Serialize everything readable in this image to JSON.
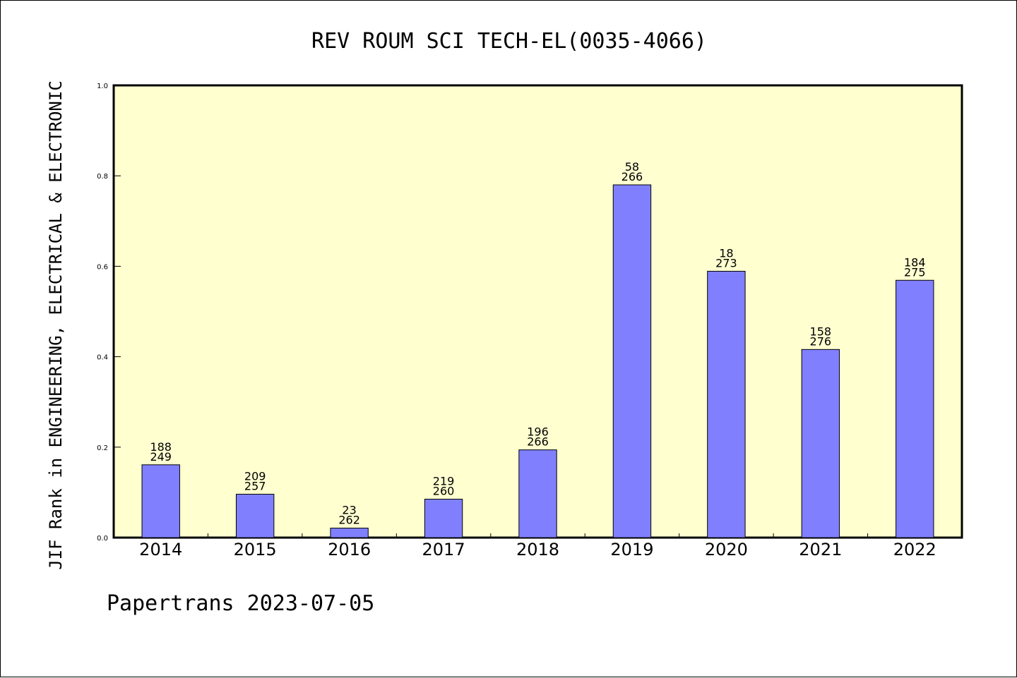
{
  "chart_data": {
    "type": "bar",
    "title": "REV ROUM SCI TECH-EL(0035-4066)",
    "ylabel": "JIF Rank in ENGINEERING, ELECTRICAL & ELECTRONIC",
    "xlabel": "",
    "categories": [
      "2014",
      "2015",
      "2016",
      "2017",
      "2018",
      "2019",
      "2020",
      "2021",
      "2022"
    ],
    "values": [
      0.161,
      0.096,
      0.021,
      0.085,
      0.194,
      0.78,
      0.589,
      0.416,
      0.569
    ],
    "rank_labels": [
      "188",
      "209",
      "23",
      "219",
      "196",
      "58",
      "18",
      "158",
      "184"
    ],
    "total_labels": [
      "249",
      "257",
      "262",
      "260",
      "266",
      "266",
      "273",
      "276",
      "275"
    ],
    "ylim": [
      0,
      1.0
    ],
    "yticks": [
      "0.0",
      "0.2",
      "0.4",
      "0.6",
      "0.8",
      "1.0"
    ],
    "grid": false,
    "colors": {
      "bar": "#8080ff",
      "plot_background": "#ffffd0"
    }
  },
  "footer": {
    "text": "Papertrans 2023-07-05"
  }
}
